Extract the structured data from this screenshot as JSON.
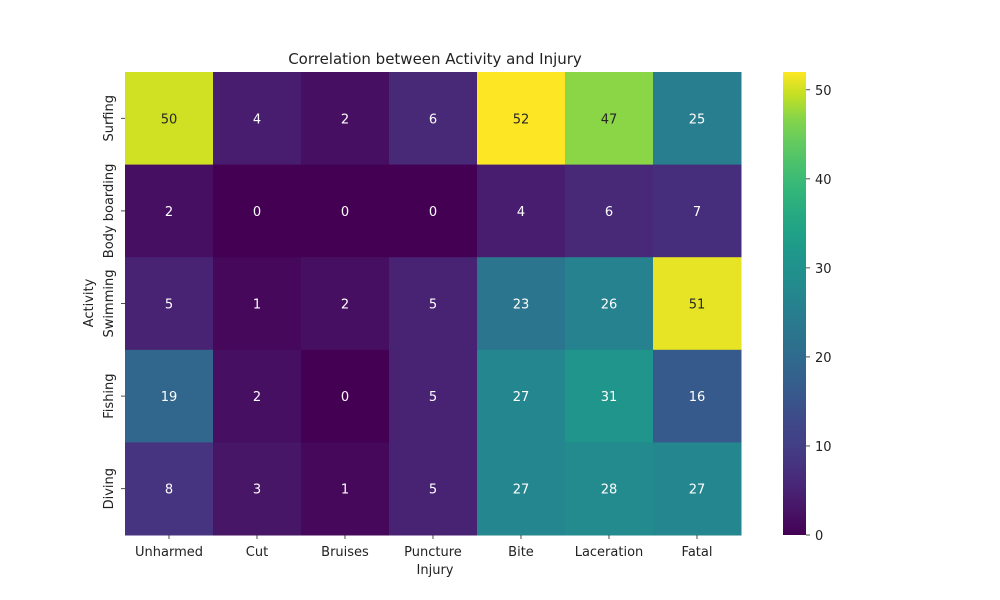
{
  "chart_data": {
    "type": "heatmap",
    "title": "Correlation between Activity and Injury",
    "xlabel": "Injury",
    "ylabel": "Activity",
    "x_categories": [
      "Unharmed",
      "Cut",
      "Bruises",
      "Puncture",
      "Bite",
      "Laceration",
      "Fatal"
    ],
    "y_categories": [
      "Surfing",
      "Body boarding",
      "Swimming",
      "Fishing",
      "Diving"
    ],
    "values": [
      [
        50,
        4,
        2,
        6,
        52,
        47,
        25
      ],
      [
        2,
        0,
        0,
        0,
        4,
        6,
        7
      ],
      [
        5,
        1,
        2,
        5,
        23,
        26,
        51
      ],
      [
        19,
        2,
        0,
        5,
        27,
        31,
        16
      ],
      [
        8,
        3,
        1,
        5,
        27,
        28,
        27
      ]
    ],
    "colormap": "viridis",
    "vmin": 0,
    "vmax": 52,
    "annotated": true,
    "colorbar": {
      "ticks": [
        0,
        10,
        20,
        30,
        40,
        50
      ]
    },
    "grid": false
  }
}
